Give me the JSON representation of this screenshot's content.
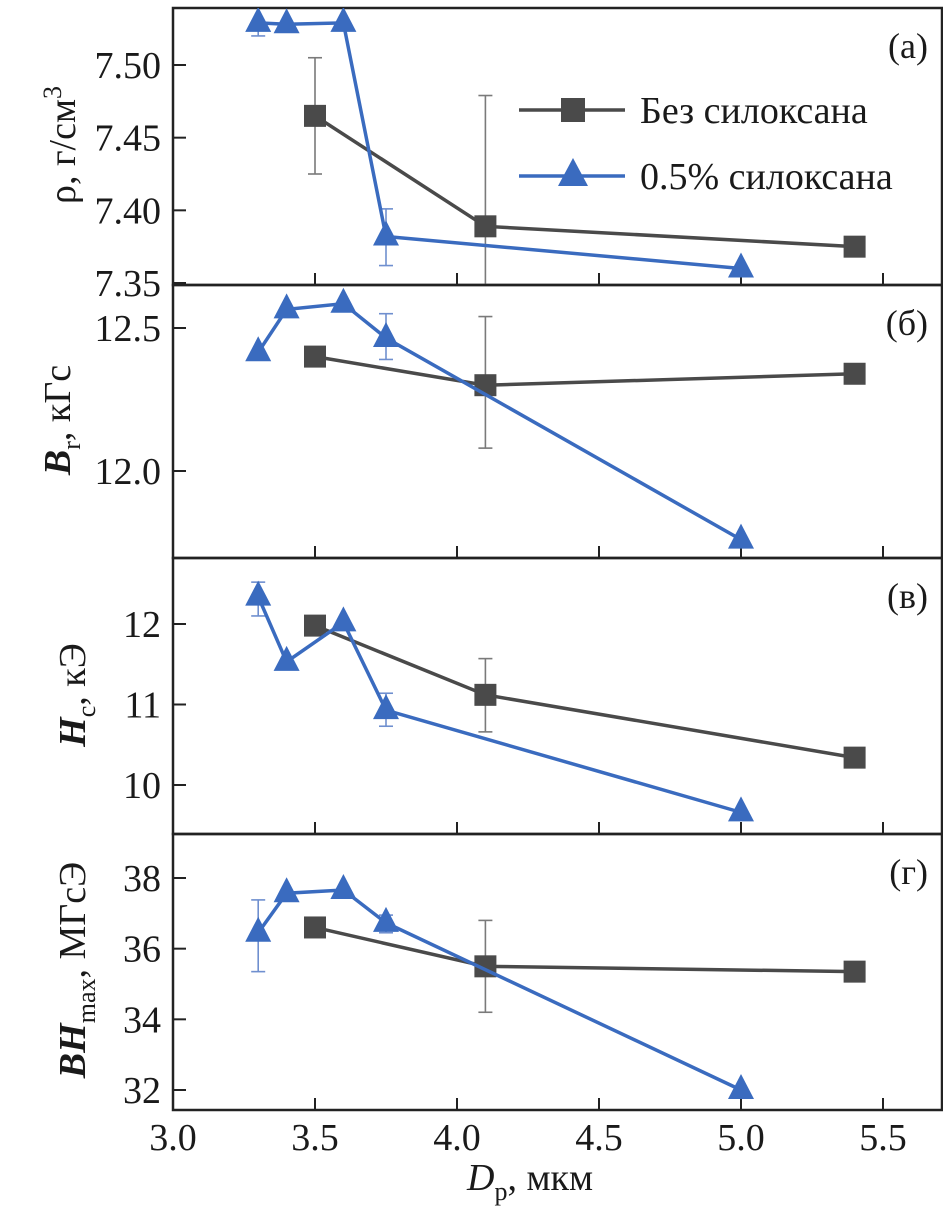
{
  "chart_data": {
    "type": "line",
    "layout": "four vertically stacked panels sharing the x axis",
    "xlabel": {
      "main": "D",
      "sub": "p",
      "unit": ", мкм"
    },
    "xlim": [
      3.0,
      5.6
    ],
    "xticks": [
      3.0,
      3.5,
      4.0,
      4.5,
      5.0,
      5.5
    ],
    "xtick_labels": [
      "3.0",
      "3.5",
      "4.0",
      "4.5",
      "5.0",
      "5.5"
    ],
    "legend": {
      "placement": "top-right of panel (a)",
      "entries": [
        {
          "label": "Без силоксана",
          "marker": "square",
          "color": "#4a4a4a"
        },
        {
          "label": "0.5% силоксана",
          "marker": "triangle",
          "color": "#3a6bbf"
        }
      ]
    },
    "colors": {
      "series1": "#4a4a4a",
      "series2": "#3a6bbf",
      "errbar1": "#7a7a7a",
      "errbar2": "#6f8fcf",
      "axis": "#222222"
    },
    "panels": [
      {
        "id": "a",
        "panel_label": "(a)",
        "ylabel": {
          "main": "ρ, г/см",
          "sup": "3",
          "italic_part": ""
        },
        "ylim": [
          7.35,
          7.54
        ],
        "yticks": [
          7.35,
          7.4,
          7.45,
          7.5
        ],
        "ytick_labels": [
          "7.35",
          "7.40",
          "7.45",
          "7.50"
        ],
        "series": [
          {
            "name": "Без силоксана",
            "x": [
              3.5,
              4.1,
              5.4
            ],
            "y": [
              7.465,
              7.389,
              7.375
            ],
            "err": [
              [
                3.5,
                7.425,
                7.505
              ],
              [
                4.1,
                7.3,
                7.479
              ]
            ]
          },
          {
            "name": "0.5% силоксана",
            "x": [
              3.3,
              3.4,
              3.6,
              3.75,
              5.0
            ],
            "y": [
              7.529,
              7.528,
              7.529,
              7.382,
              7.36
            ],
            "err": [
              [
                3.3,
                7.52,
                7.529
              ],
              [
                3.75,
                7.362,
                7.401
              ]
            ]
          }
        ]
      },
      {
        "id": "b",
        "panel_label": "(б)",
        "ylabel": {
          "main": "B",
          "sub": "r",
          "unit": ", кГс"
        },
        "ylim": [
          11.7,
          12.65
        ],
        "yticks": [
          12.0,
          12.5
        ],
        "ytick_labels": [
          "12.0",
          "12.5"
        ],
        "series": [
          {
            "name": "Без силоксана",
            "x": [
              3.5,
              4.1,
              5.4
            ],
            "y": [
              12.4,
              12.3,
              12.34
            ],
            "err": [
              [
                4.1,
                12.08,
                12.54
              ]
            ]
          },
          {
            "name": "0.5% силоксана",
            "x": [
              3.3,
              3.4,
              3.6,
              3.75,
              5.0
            ],
            "y": [
              12.415,
              12.565,
              12.585,
              12.465,
              11.76
            ],
            "err": [
              [
                3.75,
                12.39,
                12.55
              ]
            ]
          }
        ]
      },
      {
        "id": "v",
        "panel_label": "(в)",
        "ylabel": {
          "main": "H",
          "sub": "c",
          "unit": ", кЭ"
        },
        "ylim": [
          9.4,
          12.85
        ],
        "yticks": [
          10,
          11,
          12
        ],
        "ytick_labels": [
          "10",
          "11",
          "12"
        ],
        "series": [
          {
            "name": "Без силоксана",
            "x": [
              3.5,
              4.1,
              5.4
            ],
            "y": [
              11.98,
              11.12,
              10.34
            ],
            "err": [
              [
                4.1,
                10.66,
                11.57
              ]
            ]
          },
          {
            "name": "0.5% силоксана",
            "x": [
              3.3,
              3.4,
              3.6,
              3.75,
              5.0
            ],
            "y": [
              12.34,
              11.53,
              12.02,
              10.93,
              9.66
            ],
            "err": [
              [
                3.3,
                12.1,
                12.52
              ],
              [
                3.75,
                10.73,
                11.14
              ]
            ]
          }
        ]
      },
      {
        "id": "g",
        "panel_label": "(г)",
        "ylabel": {
          "main": "BH",
          "sub": "max",
          "unit": ", МГсЭ"
        },
        "ylim": [
          31.5,
          39.2
        ],
        "yticks": [
          32,
          34,
          36,
          38
        ],
        "ytick_labels": [
          "32",
          "34",
          "36",
          "38"
        ],
        "series": [
          {
            "name": "Без силоксана",
            "x": [
              3.5,
              4.1,
              5.4
            ],
            "y": [
              36.6,
              35.5,
              35.35
            ],
            "err": [
              [
                4.1,
                34.2,
                36.8
              ]
            ]
          },
          {
            "name": "0.5% силоксана",
            "x": [
              3.3,
              3.4,
              3.6,
              3.75,
              5.0
            ],
            "y": [
              36.45,
              37.57,
              37.66,
              36.73,
              32.0
            ],
            "err": [
              [
                3.3,
                35.35,
                37.38
              ],
              [
                3.75,
                36.45,
                36.95
              ]
            ]
          }
        ]
      }
    ]
  }
}
